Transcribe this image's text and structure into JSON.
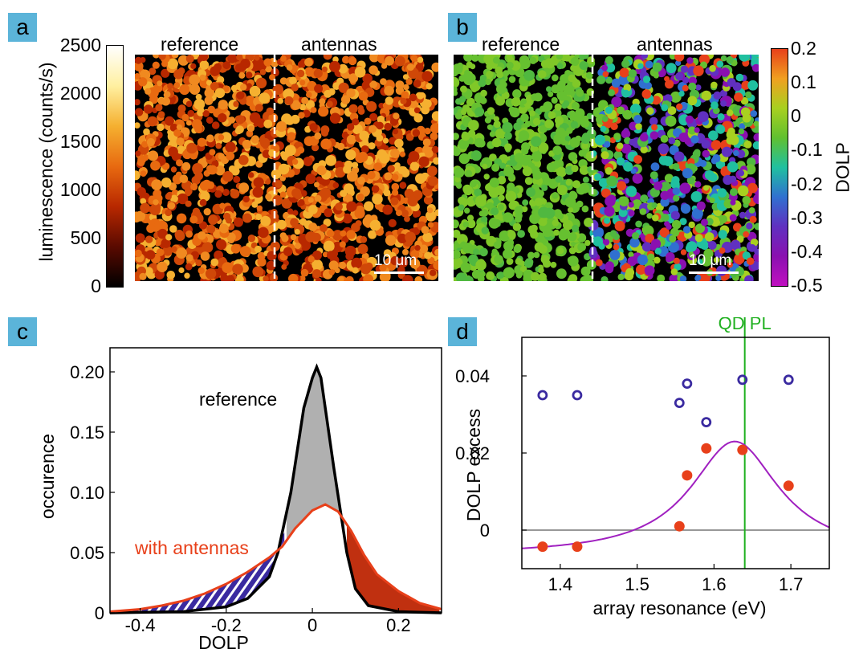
{
  "panels": {
    "a": "a",
    "b": "b",
    "c": "c",
    "d": "d"
  },
  "panel_a": {
    "reference_label": "reference",
    "antennas_label": "antennas",
    "colorbar_label": "luminescence (counts/s)",
    "colorbar_ticks": [
      "2500",
      "2000",
      "1500",
      "1000",
      "500",
      "0"
    ],
    "scalebar": "10 μm",
    "colormap": [
      "#000000",
      "#5a0a00",
      "#b82800",
      "#e86a10",
      "#f5b030",
      "#fff0a0",
      "#ffffff"
    ]
  },
  "panel_b": {
    "reference_label": "reference",
    "antennas_label": "antennas",
    "colorbar_label": "DOLP",
    "colorbar_ticks": [
      "0.2",
      "0.1",
      "0",
      "-0.1",
      "-0.2",
      "-0.3",
      "-0.4",
      "-0.5"
    ],
    "scalebar": "10 μm",
    "colormap": [
      "#e8401a",
      "#f0a020",
      "#a8d020",
      "#60c030",
      "#20c0a0",
      "#3070d0",
      "#6030c0",
      "#8a10b0",
      "#c010c0"
    ]
  },
  "chart_data": [
    {
      "type": "area",
      "panel": "c",
      "xlabel": "DOLP",
      "ylabel": "occurence",
      "xlim": [
        -0.47,
        0.3
      ],
      "ylim": [
        0,
        0.22
      ],
      "xticks": [
        "-0.4",
        "-0.2",
        "0",
        "0.2"
      ],
      "yticks": [
        "0",
        "0.05",
        "0.10",
        "0.15",
        "0.20"
      ],
      "series": [
        {
          "name": "reference",
          "color": "#000000",
          "fill": "#b0b0b0",
          "x": [
            -0.47,
            -0.3,
            -0.2,
            -0.15,
            -0.1,
            -0.08,
            -0.05,
            -0.02,
            0.0,
            0.01,
            0.02,
            0.05,
            0.08,
            0.1,
            0.13,
            0.2,
            0.3
          ],
          "y": [
            0,
            0.001,
            0.005,
            0.012,
            0.03,
            0.05,
            0.1,
            0.17,
            0.195,
            0.204,
            0.195,
            0.12,
            0.05,
            0.02,
            0.006,
            0.001,
            0
          ]
        },
        {
          "name": "with antennas",
          "color": "#e8401a",
          "fill": "#c03010",
          "x": [
            -0.47,
            -0.4,
            -0.35,
            -0.3,
            -0.25,
            -0.2,
            -0.15,
            -0.1,
            -0.07,
            -0.04,
            0.0,
            0.03,
            0.06,
            0.09,
            0.12,
            0.15,
            0.2,
            0.25,
            0.3
          ],
          "y": [
            0.001,
            0.003,
            0.006,
            0.01,
            0.016,
            0.024,
            0.034,
            0.046,
            0.055,
            0.07,
            0.085,
            0.09,
            0.084,
            0.068,
            0.048,
            0.032,
            0.018,
            0.008,
            0.003
          ]
        }
      ]
    },
    {
      "type": "scatter",
      "panel": "d",
      "xlabel": "array resonance (eV)",
      "ylabel": "DOLP excess",
      "xlim": [
        1.35,
        1.75
      ],
      "ylim": [
        -0.01,
        0.05
      ],
      "xticks": [
        "1.4",
        "1.5",
        "1.6",
        "1.7"
      ],
      "yticks": [
        "0",
        "0.02",
        "0.04"
      ],
      "annotation": "QD PL",
      "qdpl_x": 1.64,
      "series": [
        {
          "name": "",
          "marker": "open-circle",
          "color": "#3a2aa0",
          "x": [
            1.377,
            1.422,
            1.555,
            1.565,
            1.59,
            1.637,
            1.697
          ],
          "y": [
            0.035,
            0.035,
            0.033,
            0.038,
            0.028,
            0.039,
            0.039
          ]
        },
        {
          "name": "",
          "marker": "filled-circle",
          "color": "#e8401a",
          "x": [
            1.377,
            1.422,
            1.555,
            1.565,
            1.59,
            1.637,
            1.697
          ],
          "y": [
            -0.0043,
            -0.0043,
            0.001,
            0.0142,
            0.0212,
            0.0208,
            0.0115
          ]
        },
        {
          "name": "",
          "marker": "line",
          "color": "#a020c0",
          "lorentz": {
            "x0": 1.627,
            "gamma": 0.07,
            "amp": 0.0295,
            "offset": -0.0065
          }
        }
      ]
    }
  ]
}
